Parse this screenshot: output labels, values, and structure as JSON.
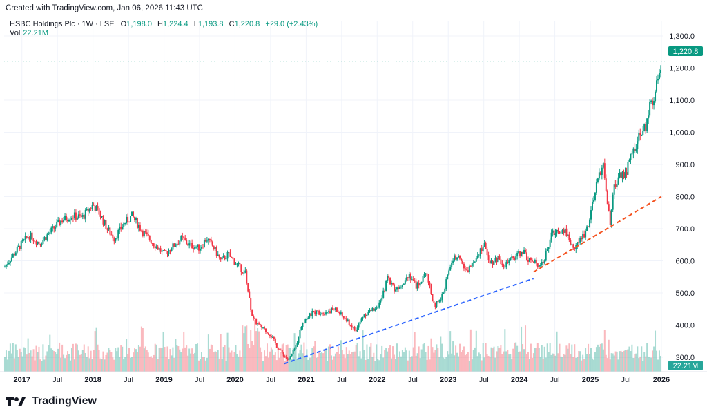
{
  "header": {
    "created": "Created with TradingView.com, Jan 06, 2026 11:43 UTC",
    "symbol": "HSBC Holdings Plc · 1W · LSE",
    "o_label": "O",
    "o_value": "1,198.0",
    "h_label": "H",
    "h_value": "1,224.4",
    "l_label": "L",
    "l_value": "1,193.8",
    "c_label": "C",
    "c_value": "1,220.8",
    "change": "+29.0 (+2.43%)",
    "vol_label": "Vol",
    "vol_value": "22.21M"
  },
  "badges": {
    "last_price": "1,220.8",
    "last_volume": "22.21M"
  },
  "footer": {
    "logo_text": "TradingView"
  },
  "colors": {
    "up": "#089981",
    "down": "#f23645",
    "blue_trend": "#2962ff",
    "red_trend": "#f4511e",
    "grid": "#f0f3fa",
    "axis_text": "#131722"
  },
  "chart_data": {
    "type": "candlestick",
    "interval": "1W",
    "y_axis_ticks": [
      "1,300.0",
      "1,200.0",
      "1,100.0",
      "1,000.0",
      "900.0",
      "800.0",
      "700.0",
      "600.0",
      "500.0",
      "400.0",
      "300.0"
    ],
    "y_tick_values": [
      1300,
      1200,
      1100,
      1000,
      900,
      800,
      700,
      600,
      500,
      400,
      300
    ],
    "ylim": [
      255,
      1330
    ],
    "x_axis_ticks": [
      "2017",
      "Jul",
      "2018",
      "Jul",
      "2019",
      "Jul",
      "2020",
      "Jul",
      "2021",
      "Jul",
      "2022",
      "Jul",
      "2023",
      "Jul",
      "2024",
      "Jul",
      "2025",
      "Jul",
      "2026"
    ],
    "x_tick_bold": [
      true,
      false,
      true,
      false,
      true,
      false,
      true,
      false,
      true,
      false,
      true,
      false,
      true,
      false,
      true,
      false,
      true,
      false,
      true
    ],
    "x_tick_times": [
      2017.0,
      2017.5,
      2018.0,
      2018.5,
      2019.0,
      2019.5,
      2020.0,
      2020.5,
      2021.0,
      2021.5,
      2022.0,
      2022.5,
      2023.0,
      2023.5,
      2024.0,
      2024.5,
      2025.0,
      2025.5,
      2026.0
    ],
    "xlim": [
      2016.75,
      2026.02
    ],
    "price_path": [
      [
        2016.75,
        580
      ],
      [
        2016.95,
        640
      ],
      [
        2017.1,
        680
      ],
      [
        2017.25,
        655
      ],
      [
        2017.4,
        690
      ],
      [
        2017.55,
        725
      ],
      [
        2017.7,
        740
      ],
      [
        2017.85,
        735
      ],
      [
        2018.0,
        775
      ],
      [
        2018.1,
        745
      ],
      [
        2018.2,
        700
      ],
      [
        2018.3,
        670
      ],
      [
        2018.45,
        720
      ],
      [
        2018.55,
        740
      ],
      [
        2018.7,
        690
      ],
      [
        2018.85,
        655
      ],
      [
        2019.0,
        620
      ],
      [
        2019.1,
        640
      ],
      [
        2019.25,
        670
      ],
      [
        2019.35,
        650
      ],
      [
        2019.5,
        640
      ],
      [
        2019.6,
        670
      ],
      [
        2019.7,
        640
      ],
      [
        2019.8,
        600
      ],
      [
        2019.9,
        620
      ],
      [
        2020.0,
        595
      ],
      [
        2020.15,
        560
      ],
      [
        2020.2,
        480
      ],
      [
        2020.25,
        420
      ],
      [
        2020.35,
        395
      ],
      [
        2020.5,
        370
      ],
      [
        2020.6,
        330
      ],
      [
        2020.75,
        290
      ],
      [
        2020.85,
        330
      ],
      [
        2020.95,
        410
      ],
      [
        2021.1,
        440
      ],
      [
        2021.25,
        440
      ],
      [
        2021.4,
        450
      ],
      [
        2021.55,
        420
      ],
      [
        2021.7,
        380
      ],
      [
        2021.8,
        430
      ],
      [
        2021.95,
        450
      ],
      [
        2022.05,
        470
      ],
      [
        2022.15,
        550
      ],
      [
        2022.25,
        510
      ],
      [
        2022.35,
        530
      ],
      [
        2022.45,
        560
      ],
      [
        2022.55,
        520
      ],
      [
        2022.7,
        560
      ],
      [
        2022.8,
        460
      ],
      [
        2022.9,
        480
      ],
      [
        2023.05,
        600
      ],
      [
        2023.15,
        625
      ],
      [
        2023.25,
        560
      ],
      [
        2023.35,
        600
      ],
      [
        2023.5,
        650
      ],
      [
        2023.6,
        595
      ],
      [
        2023.7,
        610
      ],
      [
        2023.8,
        585
      ],
      [
        2023.95,
        615
      ],
      [
        2024.05,
        630
      ],
      [
        2024.15,
        600
      ],
      [
        2024.25,
        590
      ],
      [
        2024.35,
        600
      ],
      [
        2024.45,
        680
      ],
      [
        2024.55,
        700
      ],
      [
        2024.65,
        695
      ],
      [
        2024.75,
        640
      ],
      [
        2024.85,
        660
      ],
      [
        2024.95,
        700
      ],
      [
        2025.05,
        790
      ],
      [
        2025.12,
        870
      ],
      [
        2025.18,
        900
      ],
      [
        2025.22,
        830
      ],
      [
        2025.28,
        700
      ],
      [
        2025.33,
        830
      ],
      [
        2025.42,
        870
      ],
      [
        2025.5,
        875
      ],
      [
        2025.6,
        940
      ],
      [
        2025.7,
        990
      ],
      [
        2025.78,
        1020
      ],
      [
        2025.85,
        1090
      ],
      [
        2025.92,
        1130
      ],
      [
        2025.97,
        1190
      ],
      [
        2026.0,
        1220.8
      ]
    ],
    "volume_range": [
      0,
      80
    ],
    "volume_level_m": 22.21,
    "trendlines": [
      {
        "color": "blue",
        "from": [
          2020.69,
          280
        ],
        "to": [
          2024.2,
          545
        ]
      },
      {
        "color": "red",
        "from": [
          2024.2,
          565
        ],
        "to": [
          2026.0,
          800
        ]
      }
    ]
  }
}
